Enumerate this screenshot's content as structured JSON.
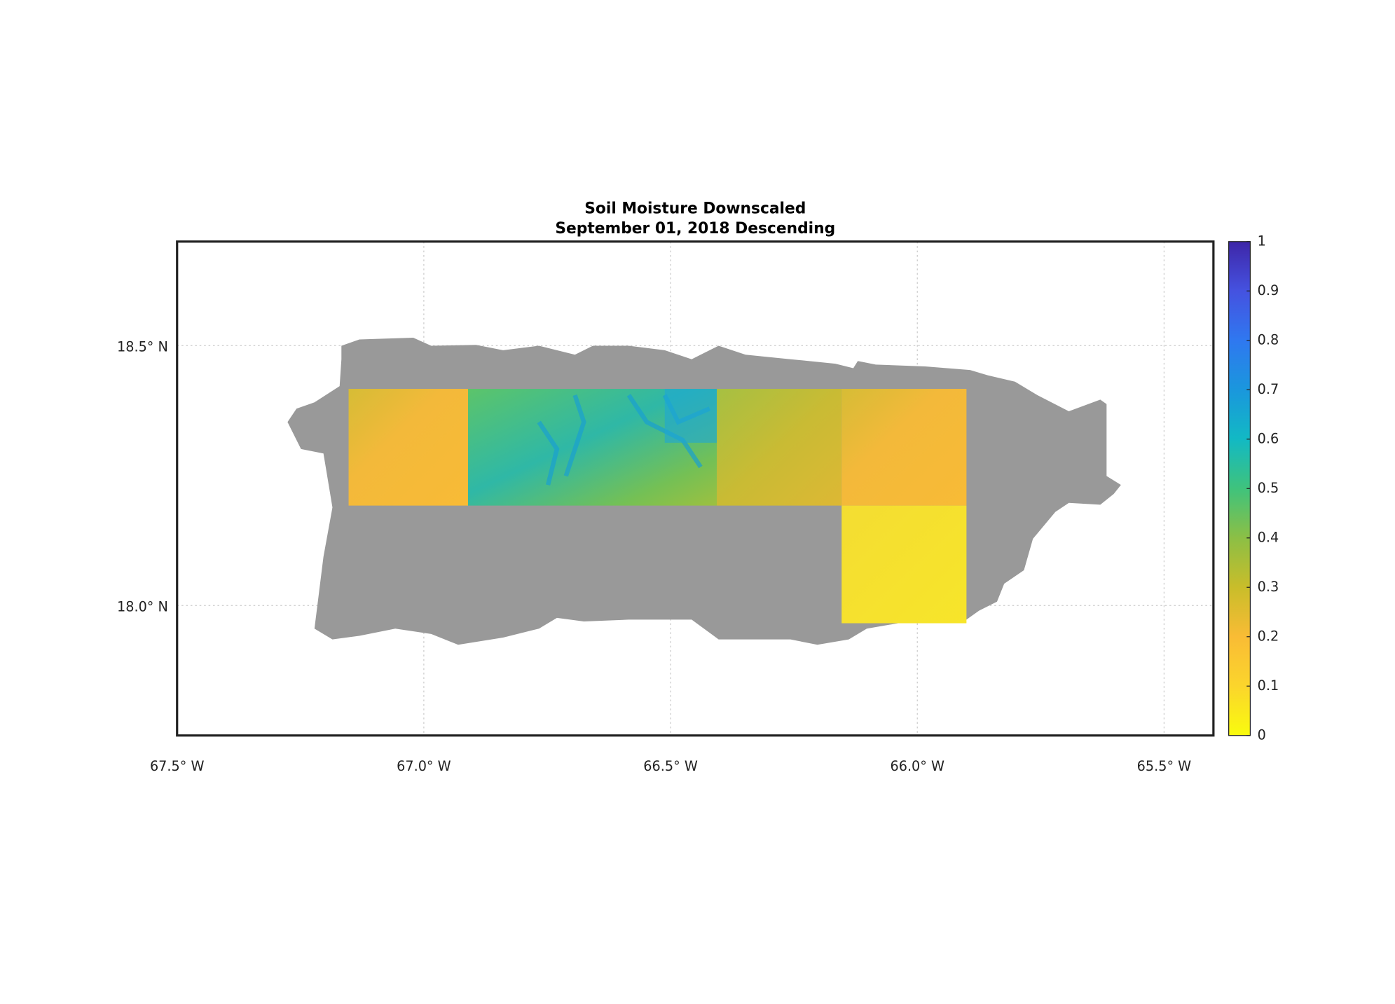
{
  "chart_data": {
    "type": "map",
    "title": "Soil Moisture Downscaled",
    "subtitle": "September 01, 2018 Descending",
    "xlim": [
      -67.5,
      -65.4
    ],
    "ylim": [
      17.75,
      18.7
    ],
    "xticks": [
      {
        "value": -67.5,
        "label": "67.5° W"
      },
      {
        "value": -67.0,
        "label": "67.0° W"
      },
      {
        "value": -66.5,
        "label": "66.5° W"
      },
      {
        "value": -66.0,
        "label": "66.0° W"
      },
      {
        "value": -65.5,
        "label": "65.5° W"
      }
    ],
    "yticks": [
      {
        "value": 18.0,
        "label": "18.0° N"
      },
      {
        "value": 18.5,
        "label": "18.5° N"
      }
    ],
    "grid": true,
    "colorbar": {
      "lim": [
        0,
        1
      ],
      "ticks": [
        0,
        0.1,
        0.2,
        0.3,
        0.4,
        0.5,
        0.6,
        0.7,
        0.8,
        0.9,
        1
      ],
      "colormap": [
        "#f9fb0e",
        "#fbd52c",
        "#f9bc35",
        "#c9bd2a",
        "#8cbf45",
        "#3fc37c",
        "#12b9c4",
        "#1a97dd",
        "#2f78f0",
        "#4552e0",
        "#3e26a8"
      ]
    }
  }
}
